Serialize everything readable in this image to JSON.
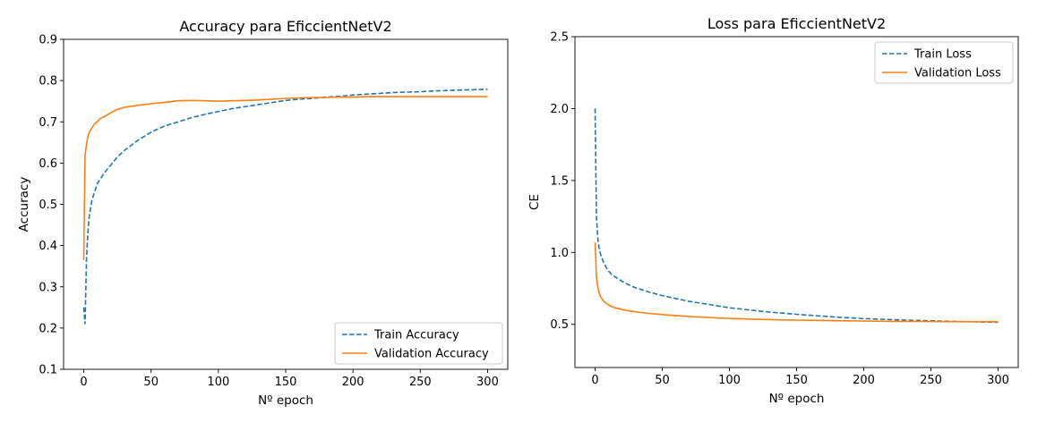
{
  "chart_data": [
    {
      "type": "line",
      "title": "Accuracy para EficcientNetV2",
      "xlabel": "Nº epoch",
      "ylabel": "Accuracy",
      "xlim": [
        -15,
        315
      ],
      "ylim": [
        0.1,
        0.9
      ],
      "xticks": [
        "0",
        "50",
        "100",
        "150",
        "200",
        "250",
        "300"
      ],
      "yticks": [
        "0.1",
        "0.2",
        "0.3",
        "0.4",
        "0.5",
        "0.6",
        "0.7",
        "0.8",
        "0.9"
      ],
      "xtick_values": [
        0,
        50,
        100,
        150,
        200,
        250,
        300
      ],
      "ytick_values": [
        0.1,
        0.2,
        0.3,
        0.4,
        0.5,
        0.6,
        0.7,
        0.8,
        0.9
      ],
      "grid": false,
      "legend": "lower-right",
      "series": [
        {
          "name": "Train Accuracy",
          "style": "dashed",
          "color": "#1f77b4",
          "x": [
            0,
            1,
            2,
            3,
            4,
            5,
            6,
            7,
            8,
            10,
            12,
            15,
            20,
            25,
            30,
            40,
            50,
            60,
            70,
            80,
            90,
            100,
            110,
            120,
            130,
            140,
            150,
            160,
            170,
            180,
            190,
            200,
            210,
            220,
            230,
            240,
            250,
            260,
            270,
            280,
            290,
            300
          ],
          "values": [
            0.25,
            0.21,
            0.37,
            0.43,
            0.47,
            0.49,
            0.51,
            0.52,
            0.53,
            0.55,
            0.56,
            0.575,
            0.595,
            0.615,
            0.63,
            0.655,
            0.675,
            0.69,
            0.7,
            0.71,
            0.718,
            0.725,
            0.732,
            0.737,
            0.742,
            0.747,
            0.752,
            0.755,
            0.757,
            0.76,
            0.762,
            0.765,
            0.767,
            0.769,
            0.771,
            0.772,
            0.773,
            0.775,
            0.776,
            0.777,
            0.778,
            0.779
          ]
        },
        {
          "name": "Validation Accuracy",
          "style": "solid",
          "color": "#ff7f0e",
          "x": [
            0,
            1,
            2,
            3,
            4,
            5,
            6,
            8,
            10,
            12,
            15,
            20,
            25,
            30,
            40,
            50,
            60,
            70,
            80,
            90,
            100,
            110,
            120,
            130,
            140,
            150,
            160,
            170,
            180,
            190,
            200,
            210,
            220,
            230,
            240,
            250,
            260,
            270,
            280,
            290,
            300
          ],
          "values": [
            0.365,
            0.62,
            0.645,
            0.665,
            0.675,
            0.68,
            0.685,
            0.695,
            0.7,
            0.708,
            0.712,
            0.722,
            0.73,
            0.735,
            0.74,
            0.744,
            0.747,
            0.751,
            0.752,
            0.751,
            0.75,
            0.751,
            0.752,
            0.753,
            0.755,
            0.757,
            0.758,
            0.759,
            0.759,
            0.76,
            0.76,
            0.761,
            0.761,
            0.761,
            0.761,
            0.761,
            0.761,
            0.761,
            0.761,
            0.761,
            0.761
          ]
        }
      ]
    },
    {
      "type": "line",
      "title": "Loss para EficcientNetV2",
      "xlabel": "Nº epoch",
      "ylabel": "CE",
      "xlim": [
        -15,
        315
      ],
      "ylim": [
        0.2,
        2.5
      ],
      "xticks": [
        "0",
        "50",
        "100",
        "150",
        "200",
        "250",
        "300"
      ],
      "yticks": [
        "0.5",
        "1.0",
        "1.5",
        "2.0",
        "2.5"
      ],
      "xtick_values": [
        0,
        50,
        100,
        150,
        200,
        250,
        300
      ],
      "ytick_values": [
        0.5,
        1.0,
        1.5,
        2.0,
        2.5
      ],
      "grid": false,
      "legend": "top-right",
      "series": [
        {
          "name": "Train Loss",
          "style": "dashed",
          "color": "#1f77b4",
          "x": [
            0,
            1,
            2,
            3,
            4,
            5,
            6,
            8,
            10,
            12,
            15,
            20,
            25,
            30,
            40,
            50,
            60,
            70,
            80,
            90,
            100,
            110,
            120,
            130,
            140,
            150,
            160,
            170,
            180,
            190,
            200,
            210,
            220,
            230,
            240,
            250,
            260,
            270,
            280,
            290,
            300
          ],
          "values": [
            2.0,
            1.25,
            1.1,
            1.03,
            0.99,
            0.96,
            0.94,
            0.9,
            0.87,
            0.85,
            0.83,
            0.8,
            0.775,
            0.755,
            0.725,
            0.7,
            0.68,
            0.66,
            0.645,
            0.63,
            0.615,
            0.605,
            0.595,
            0.585,
            0.578,
            0.57,
            0.563,
            0.557,
            0.55,
            0.545,
            0.54,
            0.536,
            0.533,
            0.53,
            0.527,
            0.525,
            0.522,
            0.52,
            0.518,
            0.516,
            0.515
          ]
        },
        {
          "name": "Validation Loss",
          "style": "solid",
          "color": "#ff7f0e",
          "x": [
            0,
            1,
            2,
            3,
            4,
            5,
            6,
            8,
            10,
            12,
            15,
            20,
            25,
            30,
            40,
            50,
            60,
            70,
            80,
            90,
            100,
            120,
            140,
            160,
            180,
            200,
            220,
            240,
            260,
            280,
            300
          ],
          "values": [
            1.07,
            0.83,
            0.76,
            0.72,
            0.695,
            0.68,
            0.665,
            0.648,
            0.635,
            0.625,
            0.615,
            0.603,
            0.594,
            0.587,
            0.576,
            0.568,
            0.561,
            0.555,
            0.55,
            0.545,
            0.541,
            0.535,
            0.531,
            0.528,
            0.525,
            0.523,
            0.521,
            0.52,
            0.519,
            0.518,
            0.518
          ]
        }
      ]
    }
  ]
}
